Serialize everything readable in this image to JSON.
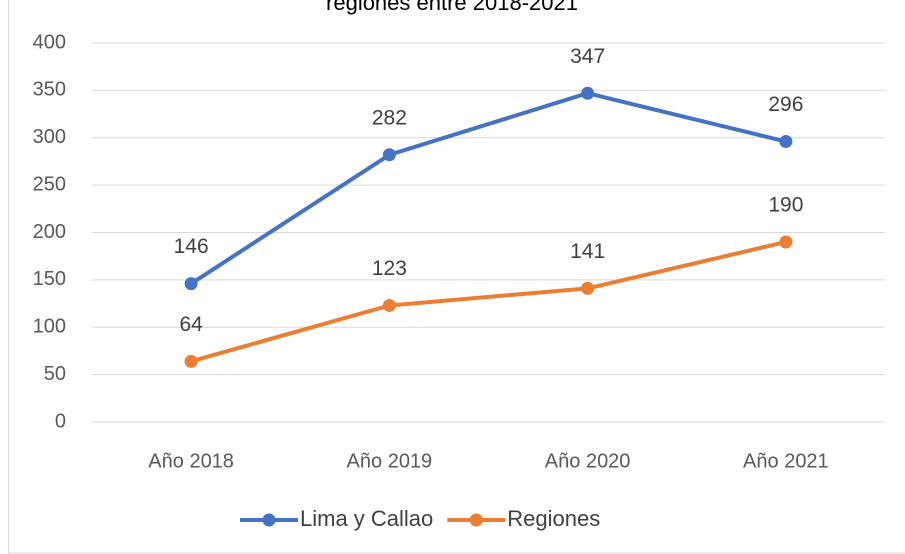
{
  "chart_data": {
    "type": "line",
    "title": "regiones entre 2018-2021",
    "categories": [
      "Año 2018",
      "Año 2019",
      "Año 2020",
      "Año 2021"
    ],
    "series": [
      {
        "name": "Lima y Callao",
        "color": "#4472c4",
        "values": [
          146,
          282,
          347,
          296
        ]
      },
      {
        "name": "Regiones",
        "color": "#ed7d31",
        "values": [
          64,
          123,
          141,
          190
        ]
      }
    ],
    "ylim": [
      0,
      400
    ],
    "yticks": [
      0,
      50,
      100,
      150,
      200,
      250,
      300,
      350,
      400
    ],
    "grid": true,
    "legend": "bottom"
  }
}
